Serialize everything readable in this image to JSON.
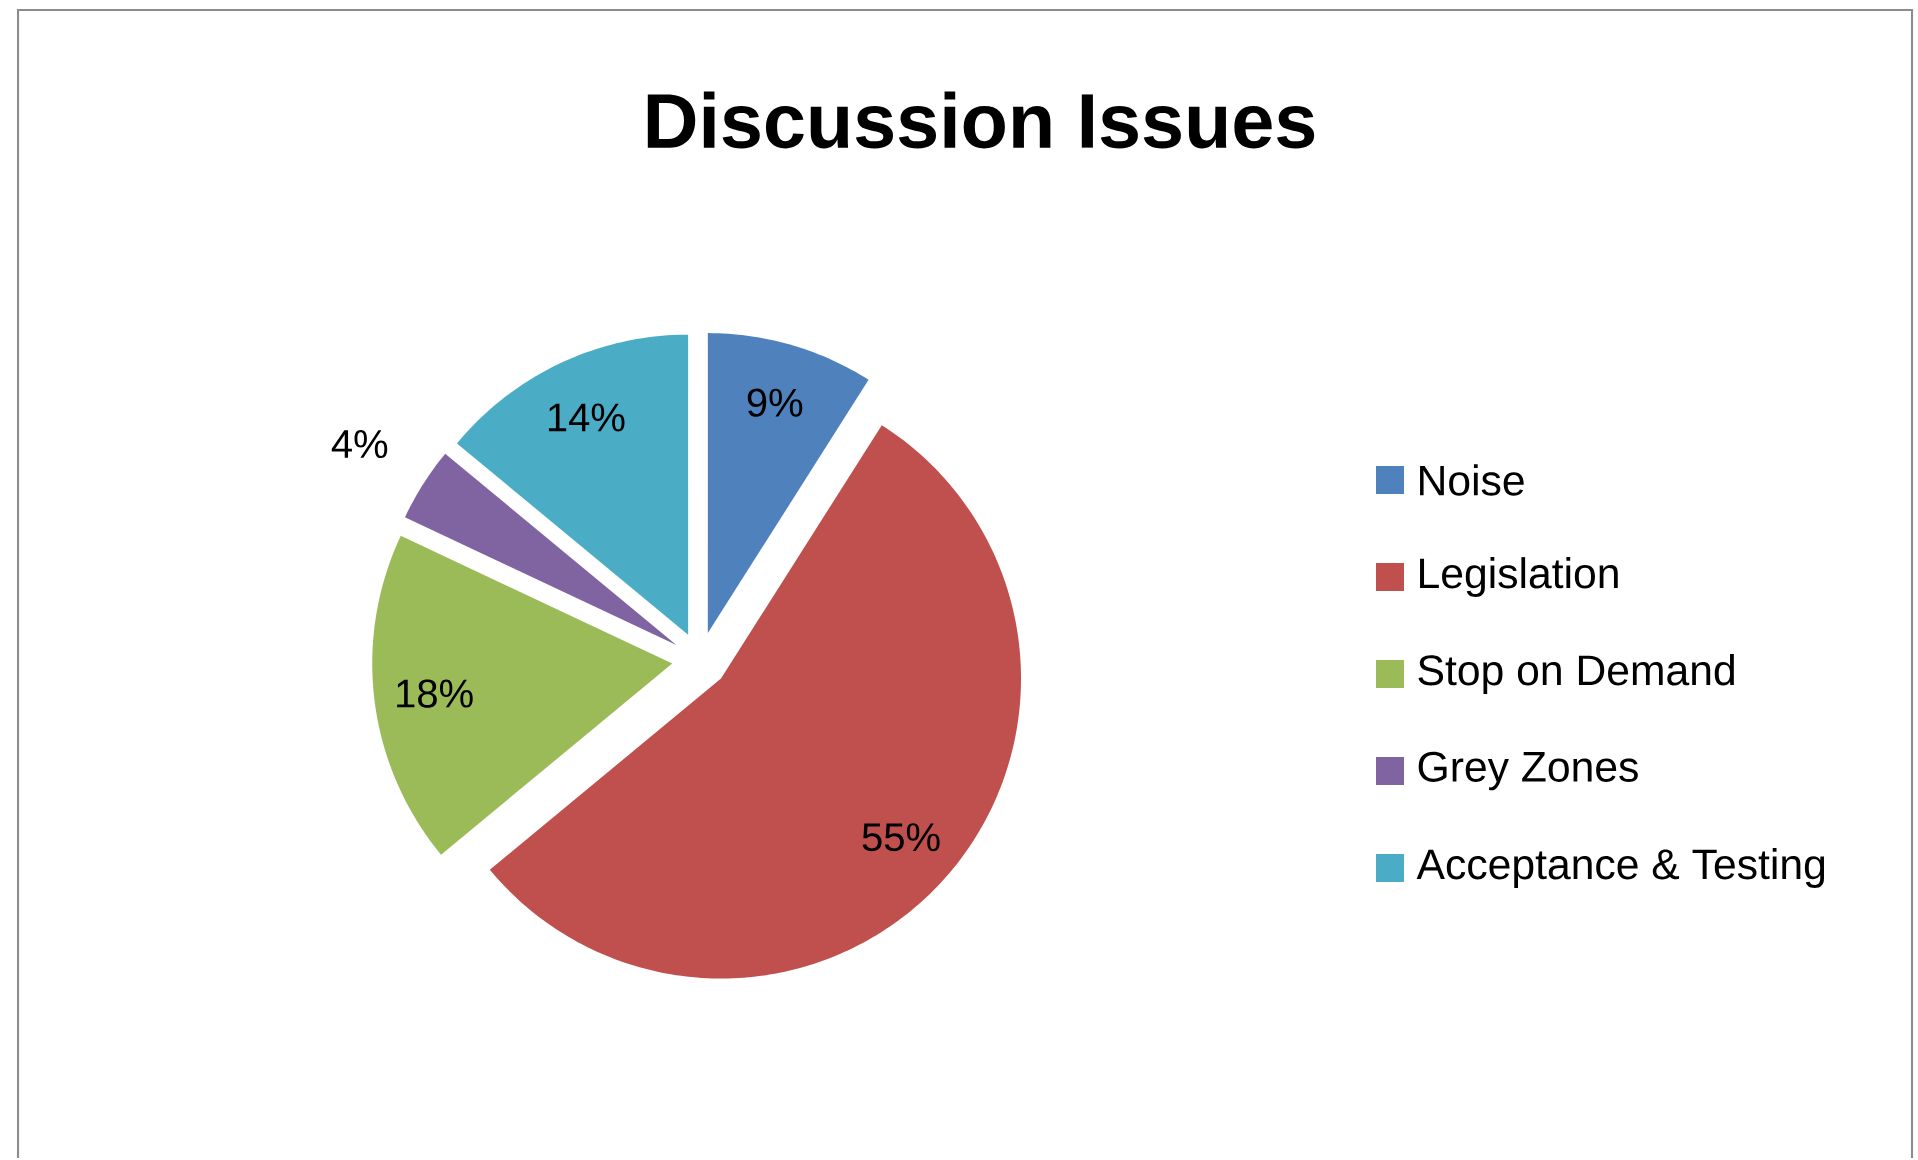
{
  "chart_data": {
    "type": "pie",
    "title": "Discussion Issues",
    "categories": [
      "Noise",
      "Legislation",
      "Stop on Demand",
      "Grey Zones",
      "Acceptance & Testing"
    ],
    "values": [
      9,
      55,
      18,
      4,
      14
    ],
    "value_labels": [
      "9%",
      "55%",
      "18%",
      "4%",
      "14%"
    ],
    "colors": [
      "#4f81bd",
      "#c0504d",
      "#9bbb59",
      "#8064a2",
      "#4bacc6"
    ],
    "legend": "right"
  }
}
